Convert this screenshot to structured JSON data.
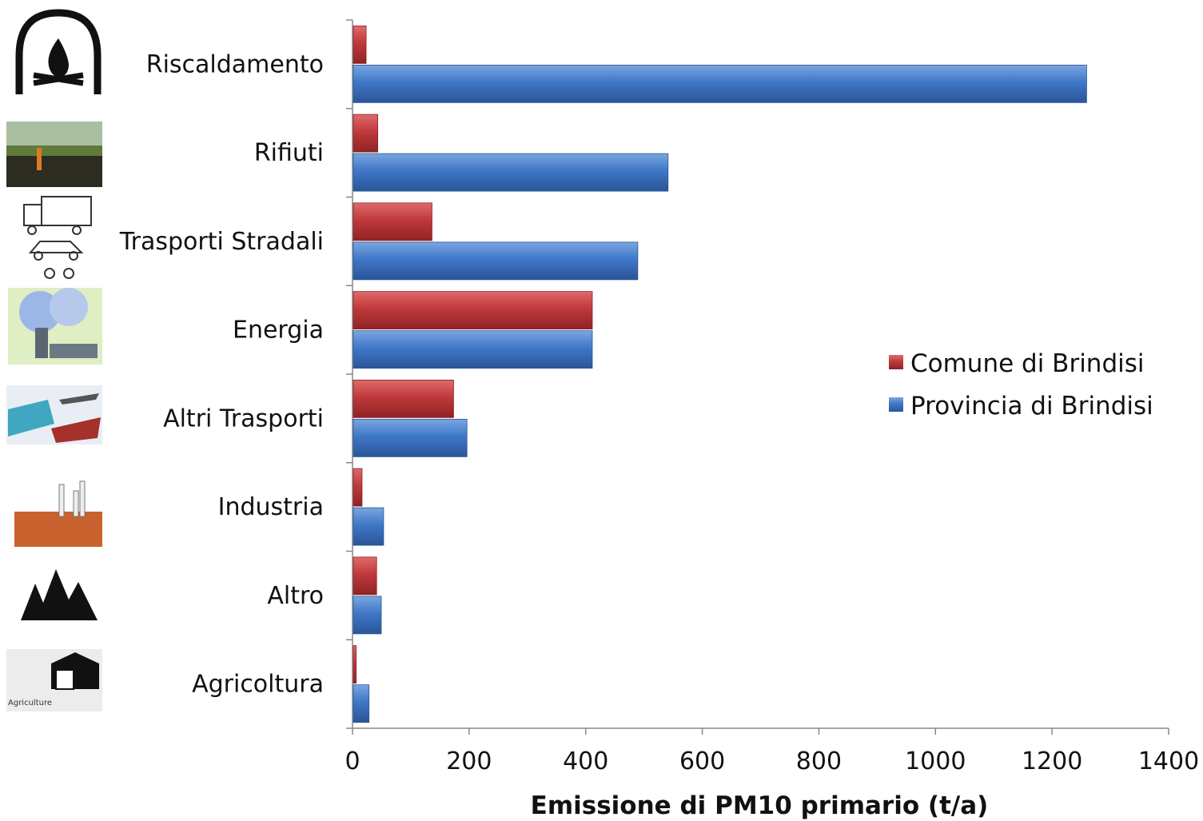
{
  "chart_data": {
    "type": "bar",
    "orientation": "horizontal",
    "categories": [
      "Riscaldamento",
      "Rifiuti",
      "Trasporti Stradali",
      "Energia",
      "Altri Trasporti",
      "Industria",
      "Altro",
      "Agricoltura"
    ],
    "series": [
      {
        "name": "Comune di Brindisi",
        "color": "#c0393b",
        "values": [
          22,
          42,
          135,
          410,
          172,
          15,
          40,
          5
        ]
      },
      {
        "name": "Provincia di Brindisi",
        "color": "#3f78c8",
        "values": [
          1258,
          540,
          488,
          410,
          195,
          52,
          48,
          27
        ]
      }
    ],
    "x_ticks": [
      "0",
      "200",
      "400",
      "600",
      "800",
      "1000",
      "1200",
      "1400"
    ],
    "xlim": [
      0,
      1400
    ],
    "xlabel": "Emissione di PM10 primario (t/a)",
    "legend_position": "right",
    "grid": false,
    "category_icons": [
      "fireplace-icon",
      "waste-burning-icon",
      "road-vehicles-icon",
      "power-plant-icon",
      "other-transport-icon",
      "factory-icon",
      "forest-fire-icon",
      "agriculture-icon"
    ]
  }
}
